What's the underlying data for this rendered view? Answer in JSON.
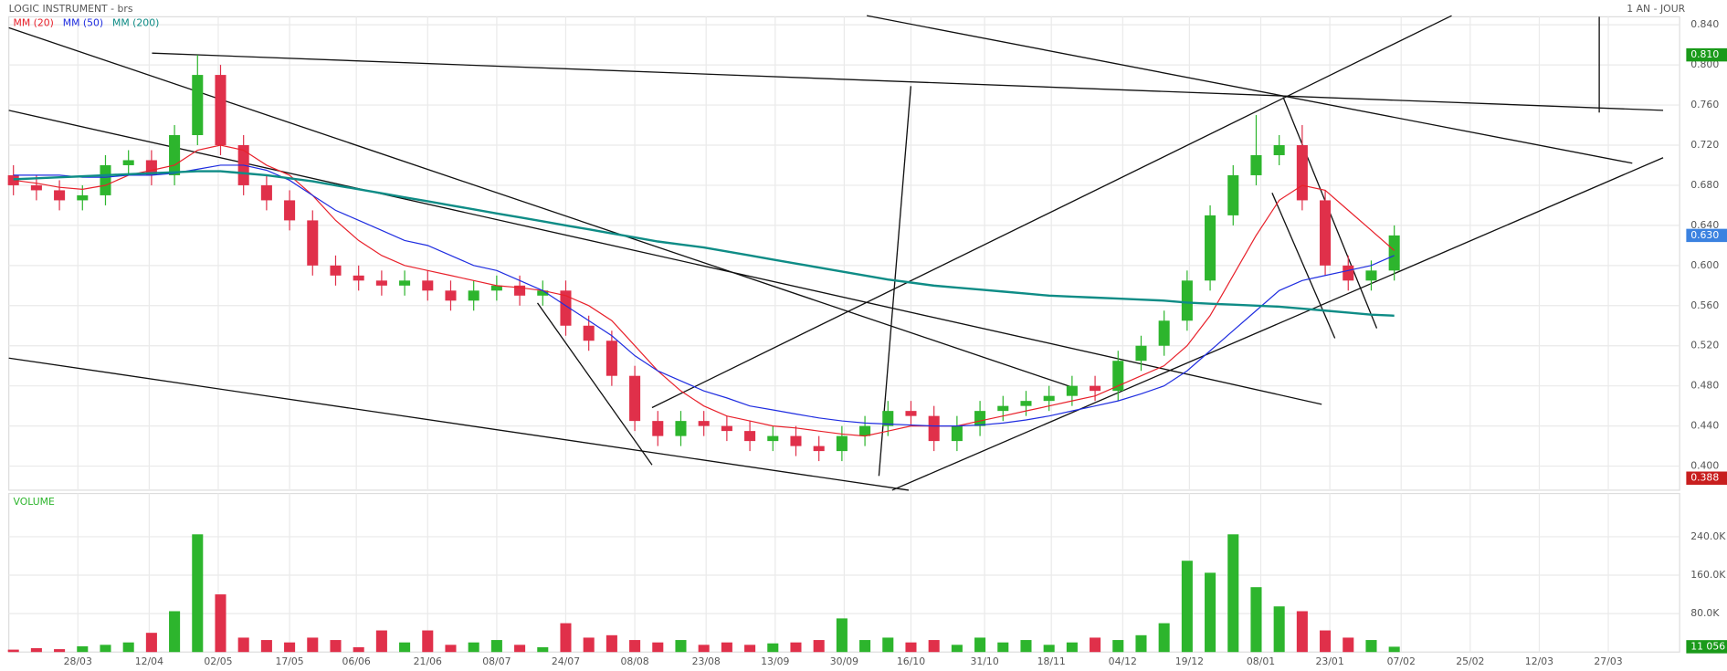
{
  "chart_data": {
    "type": "candlestick",
    "title": "LOGIC INSTRUMENT - brs",
    "period": "1 AN - JOUR",
    "xlim": [
      -0.2,
      72.4
    ],
    "xticks": [
      {
        "value": 2.8,
        "label": "28/03"
      },
      {
        "value": 5.9,
        "label": "12/04"
      },
      {
        "value": 8.9,
        "label": "02/05"
      },
      {
        "value": 12.0,
        "label": "17/05"
      },
      {
        "value": 14.9,
        "label": "06/06"
      },
      {
        "value": 18.0,
        "label": "21/06"
      },
      {
        "value": 21.0,
        "label": "08/07"
      },
      {
        "value": 24.0,
        "label": "24/07"
      },
      {
        "value": 27.0,
        "label": "08/08"
      },
      {
        "value": 30.1,
        "label": "23/08"
      },
      {
        "value": 33.1,
        "label": "13/09"
      },
      {
        "value": 36.1,
        "label": "30/09"
      },
      {
        "value": 39.0,
        "label": "16/10"
      },
      {
        "value": 42.2,
        "label": "31/10"
      },
      {
        "value": 45.1,
        "label": "18/11"
      },
      {
        "value": 48.2,
        "label": "04/12"
      },
      {
        "value": 51.1,
        "label": "19/12"
      },
      {
        "value": 54.2,
        "label": "08/01"
      },
      {
        "value": 57.2,
        "label": "23/01"
      },
      {
        "value": 60.3,
        "label": "07/02"
      },
      {
        "value": 63.3,
        "label": "25/02"
      },
      {
        "value": 66.3,
        "label": "12/03"
      },
      {
        "value": 69.3,
        "label": "27/03"
      }
    ],
    "ylim": [
      0.376,
      0.848
    ],
    "yticks": [
      {
        "value": 0.4,
        "label": "0.400"
      },
      {
        "value": 0.44,
        "label": "0.440"
      },
      {
        "value": 0.48,
        "label": "0.480"
      },
      {
        "value": 0.52,
        "label": "0.520"
      },
      {
        "value": 0.56,
        "label": "0.560"
      },
      {
        "value": 0.6,
        "label": "0.600"
      },
      {
        "value": 0.64,
        "label": "0.640"
      },
      {
        "value": 0.68,
        "label": "0.680"
      },
      {
        "value": 0.72,
        "label": "0.720"
      },
      {
        "value": 0.76,
        "label": "0.760"
      },
      {
        "value": 0.8,
        "label": "0.800"
      },
      {
        "value": 0.84,
        "label": "0.840"
      }
    ],
    "grid": true,
    "up_color": "#2db52d",
    "down_color": "#e0304a",
    "open": [
      0.69,
      0.68,
      0.675,
      0.665,
      0.67,
      0.7,
      0.705,
      0.69,
      0.73,
      0.79,
      0.72,
      0.68,
      0.665,
      0.645,
      0.6,
      0.59,
      0.585,
      0.58,
      0.585,
      0.575,
      0.565,
      0.575,
      0.58,
      0.57,
      0.575,
      0.54,
      0.525,
      0.49,
      0.445,
      0.43,
      0.445,
      0.44,
      0.435,
      0.425,
      0.43,
      0.42,
      0.415,
      0.43,
      0.44,
      0.455,
      0.45,
      0.425,
      0.44,
      0.455,
      0.46,
      0.465,
      0.47,
      0.48,
      0.475,
      0.505,
      0.52,
      0.545,
      0.585,
      0.65,
      0.69,
      0.71,
      0.72,
      0.665,
      0.6,
      0.585,
      0.595
    ],
    "high": [
      0.7,
      0.69,
      0.685,
      0.68,
      0.71,
      0.715,
      0.715,
      0.74,
      0.81,
      0.8,
      0.73,
      0.69,
      0.675,
      0.655,
      0.61,
      0.6,
      0.595,
      0.595,
      0.595,
      0.585,
      0.585,
      0.59,
      0.59,
      0.585,
      0.585,
      0.55,
      0.535,
      0.5,
      0.455,
      0.455,
      0.455,
      0.45,
      0.445,
      0.44,
      0.44,
      0.43,
      0.44,
      0.45,
      0.465,
      0.465,
      0.46,
      0.45,
      0.465,
      0.47,
      0.475,
      0.48,
      0.49,
      0.49,
      0.515,
      0.53,
      0.555,
      0.595,
      0.66,
      0.7,
      0.75,
      0.73,
      0.74,
      0.675,
      0.61,
      0.605,
      0.64
    ],
    "low": [
      0.67,
      0.665,
      0.655,
      0.655,
      0.66,
      0.69,
      0.68,
      0.68,
      0.72,
      0.71,
      0.67,
      0.655,
      0.635,
      0.59,
      0.58,
      0.575,
      0.57,
      0.57,
      0.565,
      0.555,
      0.555,
      0.565,
      0.56,
      0.56,
      0.53,
      0.515,
      0.48,
      0.435,
      0.42,
      0.42,
      0.43,
      0.425,
      0.415,
      0.415,
      0.41,
      0.405,
      0.405,
      0.42,
      0.43,
      0.44,
      0.415,
      0.415,
      0.43,
      0.445,
      0.45,
      0.455,
      0.46,
      0.465,
      0.465,
      0.495,
      0.51,
      0.535,
      0.575,
      0.64,
      0.68,
      0.7,
      0.655,
      0.59,
      0.575,
      0.575,
      0.585
    ],
    "close": [
      0.68,
      0.675,
      0.665,
      0.67,
      0.7,
      0.705,
      0.69,
      0.73,
      0.79,
      0.72,
      0.68,
      0.665,
      0.645,
      0.6,
      0.59,
      0.585,
      0.58,
      0.585,
      0.575,
      0.565,
      0.575,
      0.58,
      0.57,
      0.575,
      0.54,
      0.525,
      0.49,
      0.445,
      0.43,
      0.445,
      0.44,
      0.435,
      0.425,
      0.43,
      0.42,
      0.415,
      0.43,
      0.44,
      0.455,
      0.45,
      0.425,
      0.44,
      0.455,
      0.46,
      0.465,
      0.47,
      0.48,
      0.475,
      0.505,
      0.52,
      0.545,
      0.585,
      0.65,
      0.69,
      0.71,
      0.72,
      0.665,
      0.6,
      0.585,
      0.595,
      0.63
    ],
    "series": [
      {
        "name": "MM (20)",
        "color": "#e8212b",
        "values": [
          0.685,
          0.682,
          0.678,
          0.676,
          0.68,
          0.69,
          0.695,
          0.7,
          0.715,
          0.72,
          0.715,
          0.7,
          0.69,
          0.67,
          0.645,
          0.625,
          0.61,
          0.6,
          0.595,
          0.59,
          0.585,
          0.58,
          0.578,
          0.575,
          0.57,
          0.56,
          0.545,
          0.52,
          0.495,
          0.475,
          0.46,
          0.45,
          0.445,
          0.44,
          0.438,
          0.435,
          0.432,
          0.43,
          0.435,
          0.44,
          0.44,
          0.44,
          0.445,
          0.45,
          0.455,
          0.46,
          0.465,
          0.47,
          0.48,
          0.49,
          0.5,
          0.52,
          0.55,
          0.59,
          0.63,
          0.665,
          0.68,
          0.675,
          0.655,
          0.635,
          0.615
        ]
      },
      {
        "name": "MM (50)",
        "color": "#1f2de0",
        "values": [
          0.69,
          0.69,
          0.69,
          0.688,
          0.688,
          0.69,
          0.69,
          0.692,
          0.696,
          0.7,
          0.7,
          0.695,
          0.685,
          0.67,
          0.655,
          0.645,
          0.635,
          0.625,
          0.62,
          0.61,
          0.6,
          0.595,
          0.585,
          0.575,
          0.56,
          0.545,
          0.53,
          0.51,
          0.495,
          0.485,
          0.475,
          0.468,
          0.46,
          0.456,
          0.452,
          0.448,
          0.445,
          0.443,
          0.442,
          0.441,
          0.44,
          0.44,
          0.441,
          0.443,
          0.446,
          0.45,
          0.455,
          0.46,
          0.465,
          0.472,
          0.48,
          0.495,
          0.515,
          0.535,
          0.555,
          0.575,
          0.585,
          0.59,
          0.595,
          0.6,
          0.61
        ]
      },
      {
        "name": "MM (200)",
        "color": "#0e8c86",
        "values": [
          0.686,
          0.687,
          0.688,
          0.689,
          0.69,
          0.691,
          0.692,
          0.693,
          0.694,
          0.694,
          0.692,
          0.69,
          0.687,
          0.684,
          0.68,
          0.676,
          0.672,
          0.668,
          0.664,
          0.66,
          0.656,
          0.652,
          0.648,
          0.644,
          0.64,
          0.636,
          0.632,
          0.628,
          0.624,
          0.621,
          0.618,
          0.614,
          0.61,
          0.606,
          0.602,
          0.598,
          0.594,
          0.59,
          0.586,
          0.583,
          0.58,
          0.578,
          0.576,
          0.574,
          0.572,
          0.57,
          0.569,
          0.568,
          0.567,
          0.566,
          0.565,
          0.563,
          0.562,
          0.561,
          0.56,
          0.559,
          0.557,
          0.555,
          0.553,
          0.551,
          0.55
        ]
      }
    ],
    "markers": [
      {
        "value": 0.81,
        "label": "0.810",
        "color": "#1a9a1a"
      },
      {
        "value": 0.63,
        "label": "0.630",
        "color": "#3b82e0"
      },
      {
        "value": 0.388,
        "label": "0.388",
        "color": "#c81e1e"
      }
    ],
    "volume": {
      "label": "VOLUME",
      "ylim": [
        0,
        330000
      ],
      "yticks": [
        {
          "value": 80000,
          "label": "80.0K"
        },
        {
          "value": 160000,
          "label": "160.0K"
        },
        {
          "value": 240000,
          "label": "240.0K"
        }
      ],
      "values": [
        5000,
        8000,
        6000,
        12000,
        15000,
        20000,
        40000,
        85000,
        245000,
        120000,
        30000,
        25000,
        20000,
        30000,
        25000,
        10000,
        45000,
        20000,
        45000,
        15000,
        20000,
        25000,
        15000,
        10000,
        60000,
        30000,
        35000,
        25000,
        20000,
        25000,
        15000,
        20000,
        15000,
        18000,
        20000,
        25000,
        70000,
        25000,
        30000,
        20000,
        25000,
        15000,
        30000,
        20000,
        25000,
        15000,
        20000,
        30000,
        25000,
        35000,
        60000,
        190000,
        165000,
        245000,
        135000,
        95000,
        85000,
        45000,
        30000,
        25000,
        11056
      ],
      "marker": {
        "value": 11056,
        "label": "11 056",
        "color": "#1a9a1a"
      }
    }
  }
}
